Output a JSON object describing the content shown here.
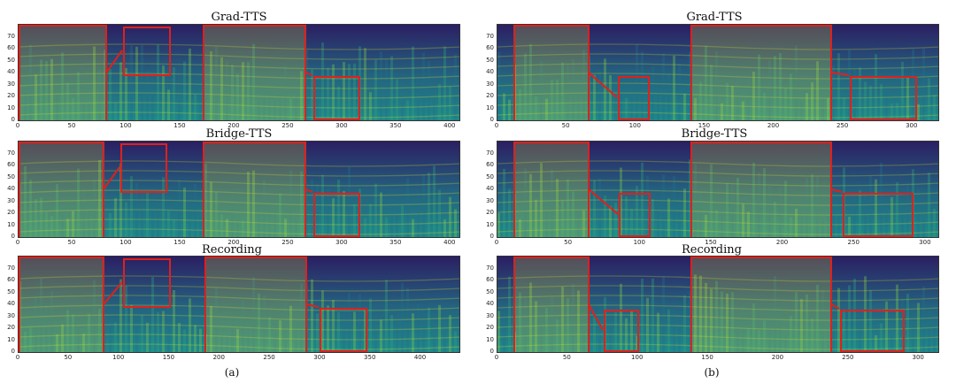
{
  "figure": {
    "left": {
      "caption": "(a)",
      "panels": [
        {
          "title": "Grad-TTS",
          "xticks": [
            "0",
            "50",
            "100",
            "150",
            "200",
            "250",
            "300",
            "350",
            "400"
          ],
          "xmax": 410
        },
        {
          "title": "Bridge-TTS",
          "xticks": [
            "0",
            "50",
            "100",
            "150",
            "200",
            "250",
            "300",
            "350",
            "400"
          ],
          "xmax": 410
        },
        {
          "title": "Recording",
          "xticks": [
            "0",
            "50",
            "100",
            "150",
            "200",
            "250",
            "300",
            "350",
            "400"
          ],
          "xmax": 440
        }
      ]
    },
    "right": {
      "caption": "(b)",
      "panels": [
        {
          "title": "Grad-TTS",
          "xticks": [
            "0",
            "50",
            "100",
            "150",
            "200",
            "250",
            "300"
          ],
          "xmax": 320
        },
        {
          "title": "Bridge-TTS",
          "xticks": [
            "0",
            "50",
            "100",
            "150",
            "200",
            "250",
            "300"
          ],
          "xmax": 310
        },
        {
          "title": "Recording",
          "xticks": [
            "0",
            "50",
            "100",
            "150",
            "200",
            "250",
            "300"
          ],
          "xmax": 315
        }
      ]
    },
    "yticks": [
      "0",
      "10",
      "20",
      "30",
      "40",
      "50",
      "60",
      "70"
    ],
    "colors": {
      "box": "#e0201c",
      "low": "#2b1f63",
      "mid": "#1f8a8a",
      "high": "#e8e620"
    }
  }
}
